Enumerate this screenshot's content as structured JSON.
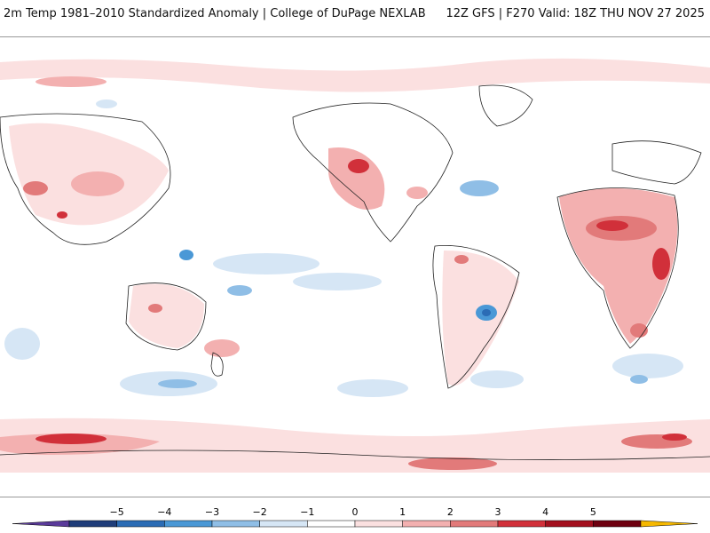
{
  "header": {
    "title_left": "2m Temp 1981–2010 Standardized Anomaly | College of DuPage NEXLAB",
    "title_right": "12Z GFS | F270 Valid: 18Z THU NOV 27 2025"
  },
  "map": {
    "projection": "equirectangular",
    "field": "2m temperature standardized anomaly"
  },
  "colorbar": {
    "ticks": [
      "−5",
      "−4",
      "−3",
      "−2",
      "−1",
      "0",
      "1",
      "2",
      "3",
      "4",
      "5"
    ],
    "colors": [
      "#5a3a9a",
      "#1f3d7a",
      "#2b6cb5",
      "#4a98d6",
      "#8fbee6",
      "#d6e6f5",
      "#ffffff",
      "#fbe0e0",
      "#f3b0b0",
      "#e27a7a",
      "#d1303a",
      "#a3101e",
      "#6e0010",
      "#f5b800"
    ]
  }
}
